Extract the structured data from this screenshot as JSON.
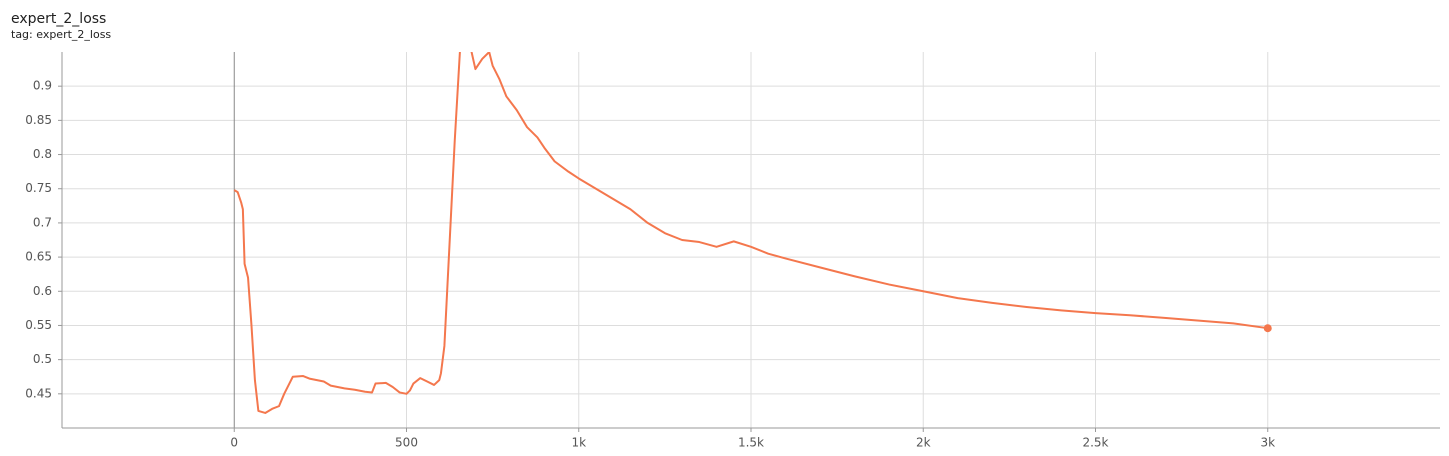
{
  "chart_data": {
    "type": "line",
    "title": "expert_2_loss",
    "subtitle": "tag: expert_2_loss",
    "x": [
      0,
      10,
      20,
      25,
      30,
      40,
      50,
      60,
      70,
      90,
      110,
      130,
      145,
      160,
      170,
      200,
      220,
      260,
      280,
      320,
      350,
      380,
      400,
      410,
      440,
      460,
      480,
      500,
      510,
      520,
      540,
      560,
      580,
      595,
      600,
      610,
      620,
      640,
      655,
      660,
      680,
      700,
      720,
      740,
      750,
      770,
      790,
      820,
      850,
      880,
      900,
      930,
      970,
      1000,
      1050,
      1100,
      1150,
      1200,
      1250,
      1300,
      1350,
      1400,
      1450,
      1500,
      1550,
      1600,
      1700,
      1800,
      1900,
      2000,
      2100,
      2200,
      2300,
      2400,
      2500,
      2600,
      2700,
      2800,
      2900,
      3000
    ],
    "series": [
      {
        "color": "#f4774d",
        "values": [
          0.748,
          0.745,
          0.73,
          0.72,
          0.64,
          0.62,
          0.55,
          0.47,
          0.425,
          0.422,
          0.428,
          0.432,
          0.45,
          0.465,
          0.475,
          0.476,
          0.472,
          0.468,
          0.462,
          0.458,
          0.456,
          0.453,
          0.452,
          0.465,
          0.466,
          0.46,
          0.452,
          0.45,
          0.455,
          0.465,
          0.473,
          0.468,
          0.463,
          0.47,
          0.48,
          0.52,
          0.62,
          0.82,
          0.95,
          1.0,
          0.97,
          0.925,
          0.94,
          0.95,
          0.93,
          0.91,
          0.885,
          0.865,
          0.84,
          0.825,
          0.81,
          0.79,
          0.775,
          0.765,
          0.75,
          0.735,
          0.72,
          0.7,
          0.685,
          0.675,
          0.672,
          0.665,
          0.673,
          0.665,
          0.655,
          0.648,
          0.635,
          0.622,
          0.61,
          0.6,
          0.59,
          0.583,
          0.577,
          0.572,
          0.568,
          0.565,
          0.561,
          0.557,
          0.553,
          0.546
        ]
      }
    ],
    "xlim": [
      -500,
      3500
    ],
    "ylim": [
      0.4,
      0.95
    ],
    "xticks": [
      0,
      500,
      {
        "value": 1000,
        "label": "1k"
      },
      {
        "value": 1500,
        "label": "1.5k"
      },
      {
        "value": 2000,
        "label": "2k"
      },
      {
        "value": 2500,
        "label": "2.5k"
      },
      {
        "value": 3000,
        "label": "3k"
      }
    ],
    "yticks": [
      0.45,
      0.5,
      0.55,
      0.6,
      0.65,
      0.7,
      0.75,
      0.8,
      0.85,
      0.9
    ],
    "grid": true
  }
}
